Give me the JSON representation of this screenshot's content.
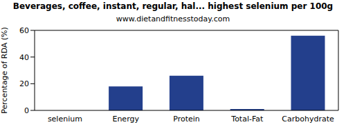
{
  "chart_data": {
    "type": "bar",
    "title": "Beverages, coffee, instant, regular, hal... highest selenium per 100g",
    "subtitle": "www.dietandfitnesstoday.com",
    "y_label": "Percentage of RDA (%)",
    "categories": [
      "selenium",
      "Energy",
      "Protein",
      "Total-Fat",
      "Carbohydrate"
    ],
    "values": [
      0,
      18,
      26,
      1,
      56
    ],
    "color": "#233f8c",
    "ylim": [
      0,
      60
    ],
    "yticks": [
      0,
      20,
      40,
      60
    ],
    "grid": false
  }
}
